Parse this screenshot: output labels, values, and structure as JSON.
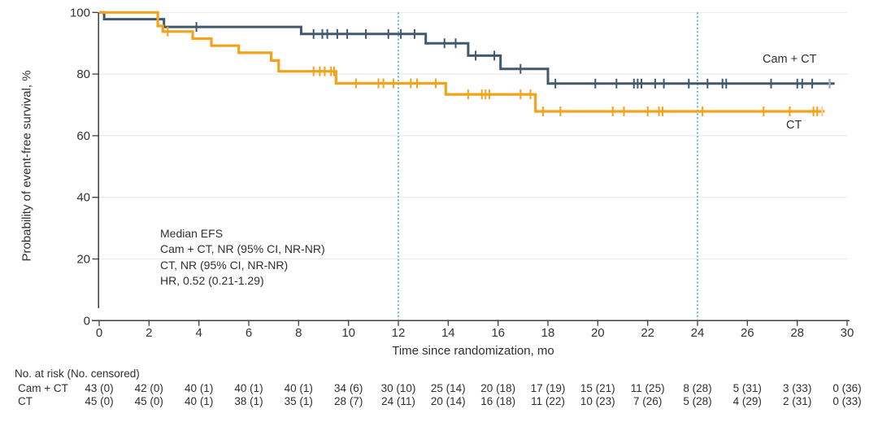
{
  "chart_data": {
    "type": "line",
    "subtype": "kaplan_meier_step_curves",
    "title": "",
    "xlabel": "Time since randomization, mo",
    "ylabel": "Probability of event-free survival, %",
    "xlim": [
      0,
      30
    ],
    "ylim": [
      0,
      100
    ],
    "x_ticks": [
      0,
      2,
      4,
      6,
      8,
      10,
      12,
      14,
      16,
      18,
      20,
      22,
      24,
      26,
      28,
      30
    ],
    "y_ticks": [
      0,
      20,
      40,
      60,
      80,
      100
    ],
    "grid": "horizontal",
    "reference_lines_x": [
      12,
      24
    ],
    "reference_line_color": "#4db4e4",
    "gridline_color": "#eaeaea",
    "axis_color": "#3d3d3d",
    "annotation": [
      "Median EFS",
      "Cam + CT, NR (95% CI, NR-NR)",
      "CT, NR (95% CI, NR-NR)",
      "HR, 0.52 (0.21-1.29)"
    ],
    "series": [
      {
        "name": "Cam + CT",
        "color": "#41586d",
        "faded_color": "#a3b1bd",
        "steps": [
          [
            0,
            100
          ],
          [
            0.2,
            97.8
          ],
          [
            2.6,
            95.3
          ],
          [
            8.1,
            93.0
          ],
          [
            13.1,
            90.0
          ],
          [
            14.8,
            86.0
          ],
          [
            16.1,
            81.7
          ],
          [
            18.0,
            76.9
          ]
        ],
        "end_x": 29.5,
        "end_censor_x": 29.3,
        "censor_times": [
          3.9,
          8.6,
          8.95,
          9.15,
          9.55,
          9.95,
          10.7,
          11.6,
          12.1,
          12.65,
          13.85,
          14.3,
          15.1,
          15.85,
          16.9,
          18.3,
          19.9,
          20.75,
          21.45,
          21.6,
          21.75,
          22.3,
          22.65,
          23.65,
          24.4,
          25.0,
          25.15,
          26.95,
          28.0,
          28.2,
          28.6
        ]
      },
      {
        "name": "CT",
        "color": "#f3a21c",
        "faded_color": "#f9d394",
        "steps": [
          [
            0,
            100
          ],
          [
            2.35,
            95.6
          ],
          [
            2.55,
            93.8
          ],
          [
            3.75,
            91.5
          ],
          [
            4.5,
            89.2
          ],
          [
            5.6,
            86.9
          ],
          [
            6.9,
            84.4
          ],
          [
            7.2,
            80.9
          ],
          [
            9.5,
            77.0
          ],
          [
            13.9,
            73.4
          ],
          [
            17.5,
            67.9
          ]
        ],
        "end_x": 29.1,
        "end_censor_x": 29.0,
        "censor_times": [
          2.75,
          8.6,
          8.85,
          9.05,
          9.3,
          9.42,
          10.3,
          11.2,
          11.4,
          11.8,
          12.5,
          12.75,
          13.5,
          14.8,
          15.35,
          15.5,
          15.65,
          16.9,
          17.3,
          17.8,
          18.5,
          20.6,
          21.05,
          22.0,
          22.45,
          22.6,
          24.2,
          26.65,
          27.7,
          28.65,
          28.8
        ]
      }
    ]
  },
  "risk_table": {
    "header": "No. at risk (No. censored)",
    "time_points": [
      0,
      2,
      4,
      6,
      8,
      10,
      12,
      14,
      16,
      18,
      20,
      22,
      24,
      26,
      28,
      30
    ],
    "rows": [
      {
        "label": "Cam + CT",
        "values": [
          "43 (0)",
          "42 (0)",
          "40 (1)",
          "40 (1)",
          "40 (1)",
          "34 (6)",
          "30 (10)",
          "25 (14)",
          "20 (18)",
          "17 (19)",
          "15 (21)",
          "11 (25)",
          "8 (28)",
          "5 (31)",
          "3 (33)",
          "0 (36)"
        ]
      },
      {
        "label": "CT",
        "values": [
          "45 (0)",
          "45 (0)",
          "40 (1)",
          "38 (1)",
          "35 (1)",
          "28 (7)",
          "24 (11)",
          "20 (14)",
          "16 (18)",
          "11 (22)",
          "10 (23)",
          "7 (26)",
          "5 (28)",
          "4 (29)",
          "2 (31)",
          "0 (33)"
        ]
      }
    ]
  }
}
